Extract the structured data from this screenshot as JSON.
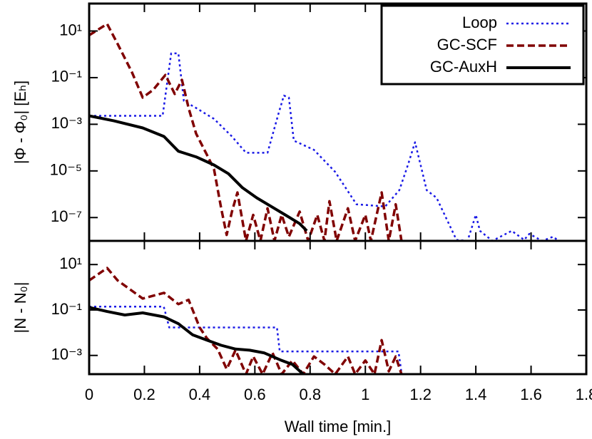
{
  "chart_data": [
    {
      "type": "line",
      "ylabel": "|Φ - Φ₀| [Eₕ]",
      "log_y": true,
      "legend": "top right",
      "xlim": [
        0,
        1.8
      ],
      "xticks": [
        0,
        0.2,
        0.4,
        0.6,
        0.8,
        1,
        1.2,
        1.4,
        1.6,
        1.8
      ],
      "ylim": [
        1e-08,
        150
      ],
      "yticks": [
        {
          "value": 10,
          "label": "10¹"
        },
        {
          "value": 0.1,
          "label": "10⁻¹"
        },
        {
          "value": 0.001,
          "label": "10⁻³"
        },
        {
          "value": 1e-05,
          "label": "10⁻⁵"
        },
        {
          "value": 1e-07,
          "label": "10⁻⁷"
        }
      ],
      "series": [
        {
          "name": "Loop",
          "color": "#1a1ae6",
          "style": "dotted",
          "x": [
            0,
            0.266,
            0.297,
            0.323,
            0.343,
            0.387,
            0.452,
            0.517,
            0.568,
            0.646,
            0.684,
            0.705,
            0.723,
            0.741,
            0.814,
            0.891,
            0.968,
            1.072,
            1.123,
            1.154,
            1.18,
            1.2,
            1.222,
            1.258,
            1.33,
            1.37,
            1.4,
            1.415,
            1.46,
            1.53,
            1.575,
            1.594,
            1.64,
            1.68,
            1.7
          ],
          "values": [
            0.0023,
            0.0023,
            1.1,
            1.1,
            0.01,
            0.005,
            0.0017,
            0.0003,
            6e-05,
            6e-05,
            0.0025,
            0.017,
            0.014,
            0.0002,
            8e-05,
            9e-06,
            3.7e-07,
            3e-07,
            1.5e-06,
            1.8e-05,
            0.00017,
            1.8e-05,
            1.5e-06,
            7e-07,
            1.1e-08,
            1e-08,
            1.3e-07,
            2.7e-08,
            1e-08,
            2.7e-08,
            1.1e-08,
            2e-08,
            1e-08,
            1.5e-08,
            1e-08
          ]
        },
        {
          "name": "GC-SCF",
          "color": "#800000",
          "style": "dashed",
          "x": [
            0,
            0.065,
            0.103,
            0.155,
            0.194,
            0.232,
            0.276,
            0.31,
            0.336,
            0.36,
            0.387,
            0.426,
            0.452,
            0.478,
            0.498,
            0.517,
            0.537,
            0.568,
            0.594,
            0.62,
            0.646,
            0.671,
            0.697,
            0.723,
            0.762,
            0.793,
            0.826,
            0.852,
            0.87,
            0.896,
            0.937,
            0.963,
            1.0,
            1.02,
            1.059,
            1.085,
            1.11,
            1.131
          ],
          "values": [
            6.6,
            20,
            2.8,
            0.17,
            0.014,
            0.03,
            0.13,
            0.02,
            0.08,
            0.005,
            0.0004,
            5e-05,
            1.2e-05,
            2.5e-07,
            1.8e-08,
            1.8e-07,
            1.2e-06,
            1e-08,
            1.3e-07,
            1e-08,
            2.5e-07,
            1e-08,
            1.3e-07,
            1.5e-08,
            1.8e-07,
            1e-08,
            1.3e-07,
            1e-08,
            5e-07,
            1e-08,
            2.5e-07,
            1e-08,
            1.3e-07,
            1e-08,
            1.2e-06,
            1e-08,
            3.7e-07,
            1e-08
          ]
        },
        {
          "name": "GC-AuxH",
          "color": "#000000",
          "style": "solid",
          "x": [
            0,
            0.09,
            0.194,
            0.271,
            0.323,
            0.387,
            0.452,
            0.504,
            0.555,
            0.607,
            0.659,
            0.71,
            0.762,
            0.788
          ],
          "values": [
            0.0023,
            0.0014,
            0.0007,
            0.0003,
            7e-05,
            4e-05,
            1.8e-05,
            7.6e-06,
            1.9e-06,
            7e-07,
            3e-07,
            1.3e-07,
            5.5e-08,
            2.7e-08
          ]
        }
      ]
    },
    {
      "type": "line",
      "ylabel": "|N - N₀|",
      "xlabel": "Wall time [min.]",
      "log_y": true,
      "xlim": [
        0,
        1.8
      ],
      "xticks": [
        0,
        0.2,
        0.4,
        0.6,
        0.8,
        1,
        1.2,
        1.4,
        1.6,
        1.8
      ],
      "ylim": [
        0.00015,
        110
      ],
      "yticks": [
        {
          "value": 10,
          "label": "10¹"
        },
        {
          "value": 0.1,
          "label": "10⁻¹"
        },
        {
          "value": 0.001,
          "label": "10⁻³"
        }
      ],
      "series": [
        {
          "color": "#1a1ae6",
          "style": "dotted",
          "x": [
            0,
            0.27,
            0.29,
            0.68,
            0.69,
            1.12,
            1.13
          ],
          "values": [
            0.14,
            0.14,
            0.017,
            0.017,
            0.0015,
            0.0015,
            0.0002
          ]
        },
        {
          "color": "#800000",
          "style": "dashed",
          "x": [
            0,
            0.065,
            0.103,
            0.194,
            0.271,
            0.323,
            0.36,
            0.4,
            0.426,
            0.465,
            0.498,
            0.53,
            0.568,
            0.594,
            0.628,
            0.664,
            0.697,
            0.736,
            0.775,
            0.814,
            0.852,
            0.891,
            0.937,
            0.963,
            1.0,
            1.033,
            1.059,
            1.085,
            1.11,
            1.131
          ],
          "values": [
            2,
            7,
            2,
            0.32,
            0.57,
            0.18,
            0.28,
            0.017,
            0.0057,
            0.0019,
            0.00025,
            0.0017,
            0.00015,
            0.0009,
            0.00015,
            0.0013,
            0.00015,
            0.0006,
            0.00015,
            0.0009,
            0.0004,
            0.00015,
            0.0009,
            0.00015,
            0.0006,
            0.00015,
            0.0047,
            0.0002,
            0.0009,
            0.00015
          ]
        },
        {
          "color": "#000000",
          "style": "solid",
          "x": [
            0,
            0.065,
            0.129,
            0.194,
            0.271,
            0.323,
            0.375,
            0.426,
            0.478,
            0.53,
            0.581,
            0.633,
            0.697,
            0.736,
            0.775
          ],
          "values": [
            0.13,
            0.086,
            0.06,
            0.075,
            0.05,
            0.025,
            0.008,
            0.0047,
            0.0028,
            0.0019,
            0.0017,
            0.0013,
            0.0006,
            0.0004,
            0.00015
          ]
        }
      ]
    }
  ]
}
